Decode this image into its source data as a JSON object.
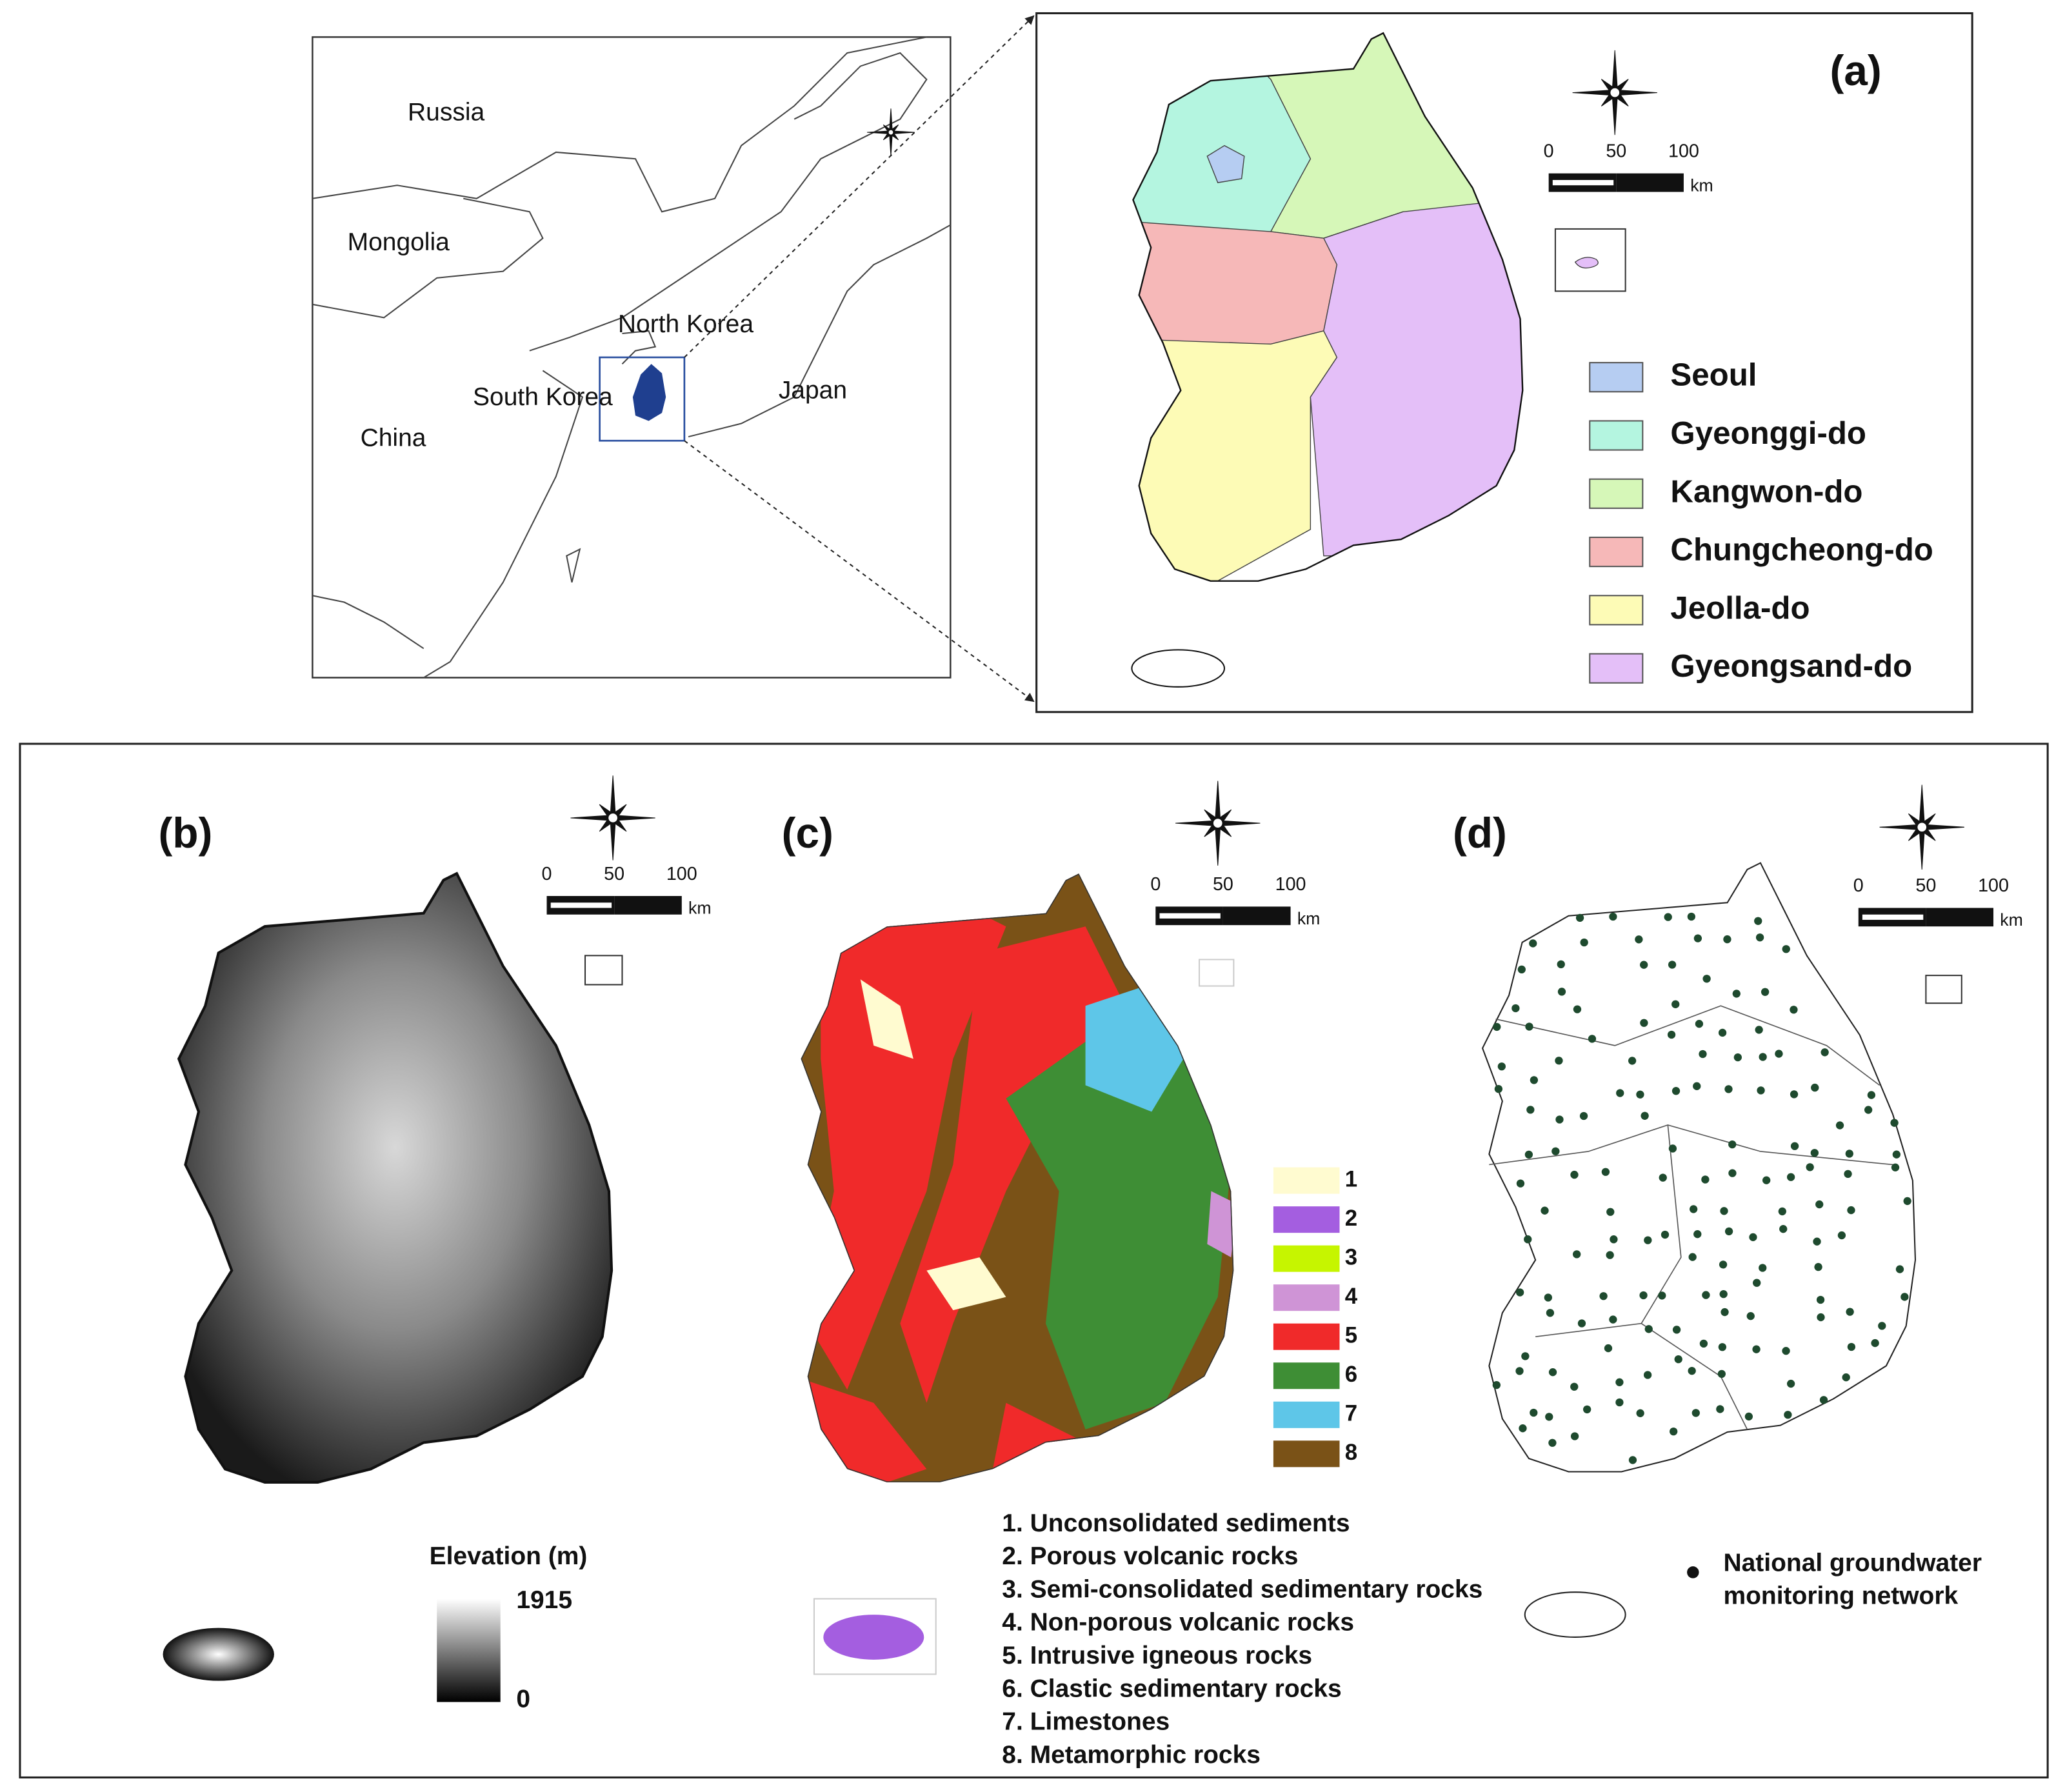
{
  "overview": {
    "labels": [
      "Russia",
      "Mongolia",
      "North Korea",
      "South Korea",
      "China",
      "Japan"
    ]
  },
  "panel_a": {
    "label": "(a)",
    "scale": {
      "ticks": [
        "0",
        "50",
        "100"
      ],
      "unit": "km"
    },
    "legend": [
      {
        "label": "Seoul",
        "color": "#b6cdf2"
      },
      {
        "label": "Gyeonggi-do",
        "color": "#b4f5e0"
      },
      {
        "label": "Kangwon-do",
        "color": "#d6f7b8"
      },
      {
        "label": "Chungcheong-do",
        "color": "#f6b8b8"
      },
      {
        "label": "Jeolla-do",
        "color": "#fdfbb6"
      },
      {
        "label": "Gyeongsand-do",
        "color": "#e4bff8"
      }
    ]
  },
  "panel_b": {
    "label": "(b)",
    "scale": {
      "ticks": [
        "0",
        "50",
        "100"
      ],
      "unit": "km"
    },
    "colorbar": {
      "title": "Elevation (m)",
      "max": "1915",
      "min": "0"
    }
  },
  "panel_c": {
    "label": "(c)",
    "scale": {
      "ticks": [
        "0",
        "50",
        "100"
      ],
      "unit": "km"
    },
    "legend": [
      {
        "key": "1",
        "label": "1. Unconsolidated sediments",
        "color": "#fffbd0"
      },
      {
        "key": "2",
        "label": "2. Porous volcanic rocks",
        "color": "#a45ee0"
      },
      {
        "key": "3",
        "label": "3. Semi-consolidated sedimentary rocks",
        "color": "#c6f500"
      },
      {
        "key": "4",
        "label": "4. Non-porous volcanic rocks",
        "color": "#cf94d6"
      },
      {
        "key": "5",
        "label": "5. Intrusive igneous rocks",
        "color": "#f02a2a"
      },
      {
        "key": "6",
        "label": "6. Clastic sedimentary rocks",
        "color": "#3e8e35"
      },
      {
        "key": "7",
        "label": "7. Limestones",
        "color": "#5ec6e8"
      },
      {
        "key": "8",
        "label": "8. Metamorphic rocks",
        "color": "#7a5217"
      }
    ]
  },
  "panel_d": {
    "label": "(d)",
    "scale": {
      "ticks": [
        "0",
        "50",
        "100"
      ],
      "unit": "km"
    },
    "legend": [
      "National groundwater",
      "monitoring network"
    ]
  }
}
